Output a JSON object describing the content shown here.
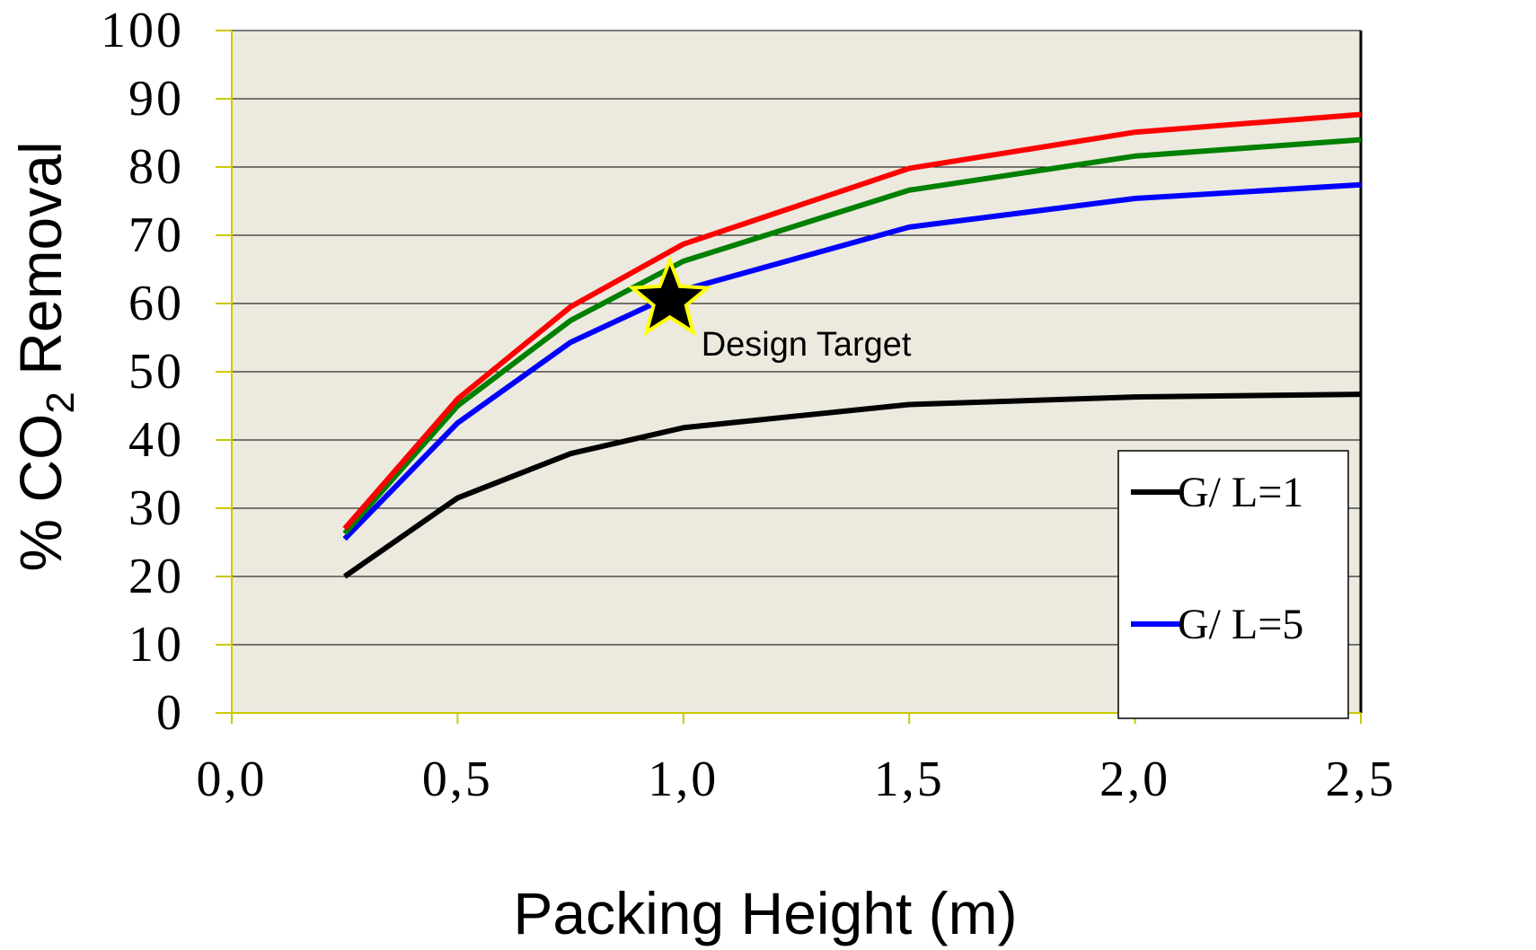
{
  "chart_data": {
    "type": "line",
    "title": "",
    "xlabel": "Packing Height (m)",
    "ylabel_parts": {
      "pre": "% CO",
      "sub": "2",
      "post": " Removal"
    },
    "xlim": [
      0.0,
      2.5
    ],
    "ylim": [
      0,
      100
    ],
    "x_ticks": [
      0.0,
      0.5,
      1.0,
      1.5,
      2.0,
      2.5
    ],
    "x_tick_labels": [
      "0,0",
      "0,5",
      "1,0",
      "1,5",
      "2,0",
      "2,5"
    ],
    "y_ticks": [
      0,
      10,
      20,
      30,
      40,
      50,
      60,
      70,
      80,
      90,
      100
    ],
    "y_tick_labels": [
      "0",
      "10",
      "20",
      "30",
      "40",
      "50",
      "60",
      "70",
      "80",
      "90",
      "100"
    ],
    "grid": "horizontal",
    "plot_background": "#ECE9DF",
    "x": [
      0.25,
      0.5,
      0.75,
      1.0,
      1.5,
      2.0,
      2.5
    ],
    "series": [
      {
        "name": "G/ L=1",
        "color": "#000000",
        "values": [
          20.0,
          31.5,
          38.0,
          41.8,
          45.2,
          46.3,
          46.7
        ]
      },
      {
        "color": "#0000FF",
        "values": [
          25.5,
          42.5,
          54.3,
          62.0,
          71.2,
          75.4,
          77.4
        ]
      },
      {
        "color": "#008000",
        "values": [
          26.3,
          45.0,
          57.5,
          66.2,
          76.6,
          81.6,
          84.0
        ]
      },
      {
        "color": "#FF0000",
        "values": [
          27.0,
          46.0,
          59.5,
          68.7,
          79.8,
          85.1,
          87.7
        ]
      }
    ],
    "annotation": {
      "text": "Design Target",
      "x": 0.97,
      "y": 60.5,
      "marker": "star",
      "marker_color": "#000000",
      "marker_outline": "#FFFF00"
    },
    "legend": {
      "placement": "bottom-right",
      "entries": [
        {
          "label": "G/ L=1",
          "color": "#000000"
        },
        {
          "label": "G/ L=5",
          "color": "#0000FF"
        }
      ]
    }
  }
}
